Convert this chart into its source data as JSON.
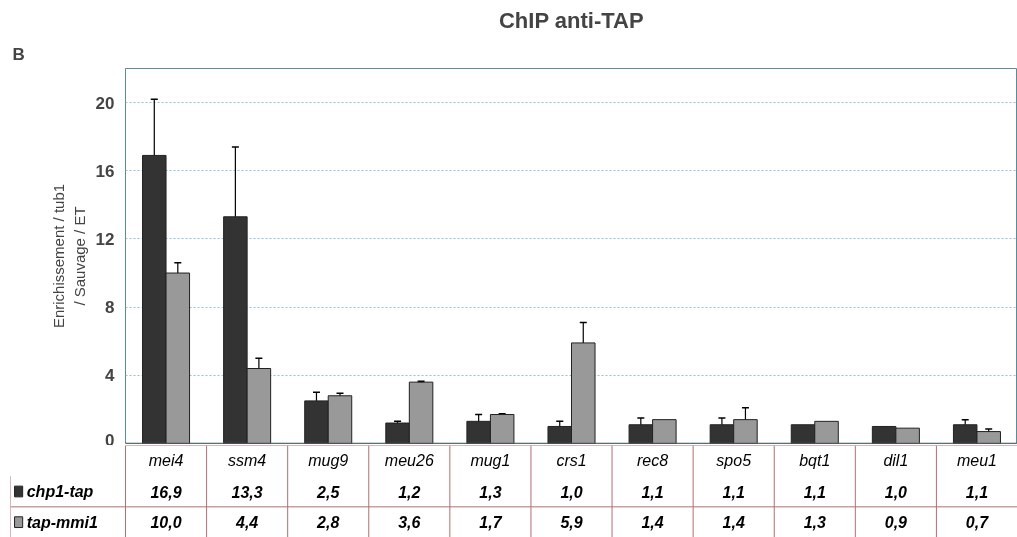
{
  "chart_data": {
    "type": "bar",
    "title": "ChIP anti-TAP",
    "ylabel": "Enrichissement / tub1\n/ Sauvage / ET",
    "categories": [
      "mei4",
      "ssm4",
      "mug9",
      "meu26",
      "mug1",
      "crs1",
      "rec8",
      "spo5",
      "bqt1",
      "dil1",
      "meu1"
    ],
    "series": [
      {
        "name": "chp1-tap",
        "color": "#333333",
        "values": [
          16.9,
          13.3,
          2.5,
          1.2,
          1.3,
          1.0,
          1.1,
          1.1,
          1.1,
          1.0,
          1.1
        ],
        "errors": [
          3.3,
          4.1,
          0.5,
          0.1,
          0.4,
          0.3,
          0.4,
          0.4,
          null,
          null,
          0.3
        ],
        "value_labels": [
          "16,9",
          "13,3",
          "2,5",
          "1,2",
          "1,3",
          "1,0",
          "1,1",
          "1,1",
          "1,1",
          "1,0",
          "1,1"
        ]
      },
      {
        "name": "tap-mmi1",
        "color": "#999999",
        "values": [
          10.0,
          4.4,
          2.8,
          3.6,
          1.7,
          5.9,
          1.4,
          1.4,
          1.3,
          0.9,
          0.7
        ],
        "errors": [
          0.6,
          0.6,
          0.15,
          0.05,
          0.05,
          1.2,
          null,
          0.7,
          null,
          null,
          0.15
        ],
        "value_labels": [
          "10,0",
          "4,4",
          "2,8",
          "3,6",
          "1,7",
          "5,9",
          "1,4",
          "1,4",
          "1,3",
          "0,9",
          "0,7"
        ]
      }
    ],
    "ylim": [
      0,
      22
    ],
    "yticks": [
      0,
      4,
      8,
      12,
      16,
      20
    ],
    "grid": "y",
    "legend": "bottom",
    "annotations": [
      "B"
    ]
  }
}
